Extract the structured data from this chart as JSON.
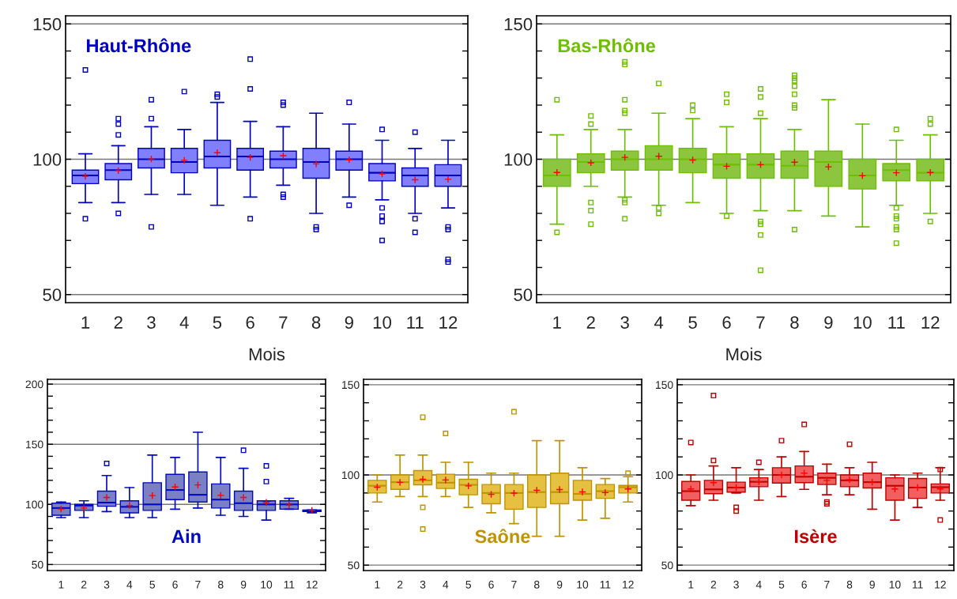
{
  "chart_data": [
    {
      "type": "box",
      "title": "Haut-Rhône",
      "xlabel": "Mois",
      "categories": [
        "1",
        "2",
        "3",
        "4",
        "5",
        "6",
        "7",
        "8",
        "9",
        "10",
        "11",
        "12"
      ],
      "ylim": [
        47,
        153
      ],
      "yticks": [
        50,
        {
          "value": 60,
          "label": null
        },
        {
          "value": 70,
          "label": null
        },
        {
          "value": 80,
          "label": null
        },
        {
          "value": 90,
          "label": null
        },
        100,
        {
          "value": 110,
          "label": null
        },
        {
          "value": 120,
          "label": null
        },
        {
          "value": 130,
          "label": null
        },
        {
          "value": 140,
          "label": null
        },
        150
      ],
      "grid": "y",
      "marker": "square",
      "series": [
        {
          "color": "#8080ff",
          "boxes": [
            {
              "low": 84,
              "q1": 91,
              "median": 94,
              "q3": 96,
              "high": 102,
              "mean": 93.7,
              "outliers": [
                78,
                133
              ]
            },
            {
              "low": 84,
              "q1": 92.4,
              "median": 96,
              "q3": 98.4,
              "high": 105,
              "mean": 95.8,
              "outliers": [
                115,
                113,
                109,
                80
              ]
            },
            {
              "low": 87,
              "q1": 96.8,
              "median": 100,
              "q3": 104,
              "high": 112,
              "mean": 100.1,
              "outliers": [
                122,
                115,
                75
              ]
            },
            {
              "low": 87,
              "q1": 95,
              "median": 99,
              "q3": 104,
              "high": 111,
              "mean": 99.6,
              "outliers": [
                125
              ]
            },
            {
              "low": 83,
              "q1": 96.8,
              "median": 101,
              "q3": 107,
              "high": 121,
              "mean": 102.4,
              "outliers": [
                124,
                123
              ]
            },
            {
              "low": 86,
              "q1": 96,
              "median": 101,
              "q3": 104,
              "high": 114,
              "mean": 100.7,
              "outliers": [
                137,
                126,
                78
              ]
            },
            {
              "low": 90.4,
              "q1": 96.8,
              "median": 100,
              "q3": 103,
              "high": 112,
              "mean": 101.3,
              "outliers": [
                121,
                120,
                87,
                86
              ]
            },
            {
              "low": 80,
              "q1": 93,
              "median": 99,
              "q3": 104,
              "high": 117,
              "mean": 98.3,
              "outliers": [
                75,
                74
              ]
            },
            {
              "low": 86,
              "q1": 96,
              "median": 100,
              "q3": 103,
              "high": 113,
              "mean": 99.8,
              "outliers": [
                121,
                83
              ]
            },
            {
              "low": 85,
              "q1": 92,
              "median": 95,
              "q3": 98.4,
              "high": 107,
              "mean": 94.6,
              "outliers": [
                111,
                82,
                79,
                77,
                70
              ]
            },
            {
              "low": 80,
              "q1": 90,
              "median": 94,
              "q3": 96.8,
              "high": 104,
              "mean": 92.4,
              "outliers": [
                110,
                78,
                73
              ]
            },
            {
              "low": 82,
              "q1": 90,
              "median": 94,
              "q3": 98,
              "high": 107,
              "mean": 92.6,
              "outliers": [
                75,
                74,
                63,
                62
              ]
            }
          ]
        }
      ]
    },
    {
      "type": "box",
      "title": "Bas-Rhône",
      "xlabel": "Mois",
      "categories": [
        "1",
        "2",
        "3",
        "4",
        "5",
        "6",
        "7",
        "8",
        "9",
        "10",
        "11",
        "12"
      ],
      "ylim": [
        47,
        153
      ],
      "yticks": [
        50,
        {
          "value": 60,
          "label": null
        },
        {
          "value": 70,
          "label": null
        },
        {
          "value": 80,
          "label": null
        },
        {
          "value": 90,
          "label": null
        },
        100,
        {
          "value": 110,
          "label": null
        },
        {
          "value": 120,
          "label": null
        },
        {
          "value": 130,
          "label": null
        },
        {
          "value": 140,
          "label": null
        },
        150
      ],
      "grid": "y",
      "marker": "square",
      "series": [
        {
          "color": "#8cc63f",
          "boxes": [
            {
              "low": 76,
              "q1": 90,
              "median": 94,
              "q3": 100,
              "high": 109,
              "mean": 95.1,
              "outliers": [
                122,
                73
              ]
            },
            {
              "low": 90,
              "q1": 95,
              "median": 99,
              "q3": 102,
              "high": 111,
              "mean": 98.7,
              "outliers": [
                116,
                113,
                84,
                81,
                76
              ]
            },
            {
              "low": 86,
              "q1": 96,
              "median": 100,
              "q3": 103,
              "high": 111,
              "mean": 100.7,
              "outliers": [
                136,
                135,
                122,
                118,
                117,
                85,
                84,
                78
              ]
            },
            {
              "low": 83,
              "q1": 96,
              "median": 100,
              "q3": 105,
              "high": 117,
              "mean": 101.1,
              "outliers": [
                128,
                82,
                80
              ]
            },
            {
              "low": 84,
              "q1": 95,
              "median": 100,
              "q3": 104,
              "high": 115,
              "mean": 99.7,
              "outliers": [
                120,
                118
              ]
            },
            {
              "low": 80,
              "q1": 93,
              "median": 98,
              "q3": 102,
              "high": 112,
              "mean": 97.4,
              "outliers": [
                124,
                121,
                79
              ]
            },
            {
              "low": 81,
              "q1": 93,
              "median": 98,
              "q3": 102,
              "high": 115,
              "mean": 98,
              "outliers": [
                126,
                123,
                117,
                77,
                76,
                72,
                59
              ]
            },
            {
              "low": 81,
              "q1": 93,
              "median": 97.6,
              "q3": 103,
              "high": 111,
              "mean": 98.9,
              "outliers": [
                131,
                130,
                129,
                127,
                124,
                120,
                119,
                74
              ]
            },
            {
              "low": 79,
              "q1": 90,
              "median": 99,
              "q3": 103,
              "high": 122,
              "mean": 97.2
            },
            {
              "low": 75,
              "q1": 89,
              "median": 94,
              "q3": 100,
              "high": 113,
              "mean": 93.9
            },
            {
              "low": 83,
              "q1": 92,
              "median": 96,
              "q3": 98.4,
              "high": 107,
              "mean": 95,
              "outliers": [
                111,
                82,
                79,
                78,
                75,
                74,
                69
              ]
            },
            {
              "low": 80,
              "q1": 92,
              "median": 95,
              "q3": 100,
              "high": 109,
              "mean": 95.1,
              "outliers": [
                115,
                113,
                77
              ]
            }
          ]
        }
      ]
    },
    {
      "type": "box",
      "title": "Ain",
      "categories": [
        "1",
        "2",
        "3",
        "4",
        "5",
        "6",
        "7",
        "8",
        "9",
        "10",
        "11",
        "12"
      ],
      "ylim": [
        45,
        204
      ],
      "yticks": [
        50,
        {
          "value": 60,
          "label": null
        },
        {
          "value": 70,
          "label": null
        },
        {
          "value": 80,
          "label": null
        },
        {
          "value": 90,
          "label": null
        },
        100,
        {
          "value": 110,
          "label": null
        },
        {
          "value": 120,
          "label": null
        },
        {
          "value": 130,
          "label": null
        },
        {
          "value": 140,
          "label": null
        },
        150,
        {
          "value": 160,
          "label": null
        },
        {
          "value": 170,
          "label": null
        },
        {
          "value": 180,
          "label": null
        },
        {
          "value": 190,
          "label": null
        },
        200
      ],
      "grid": "y",
      "marker": "square",
      "series": [
        {
          "color": "#7b7fc4",
          "boxes": [
            {
              "low": 89,
              "q1": 91,
              "median": 97,
              "q3": 101,
              "high": 102,
              "mean": 96.2
            },
            {
              "low": 89,
              "q1": 95,
              "median": 99,
              "q3": 100,
              "high": 103,
              "mean": 97
            },
            {
              "low": 94,
              "q1": 98.5,
              "median": 101.5,
              "q3": 111,
              "high": 124,
              "mean": 105.8,
              "outliers": [
                134
              ]
            },
            {
              "low": 89,
              "q1": 93,
              "median": 98,
              "q3": 103,
              "high": 114,
              "mean": 99.1
            },
            {
              "low": 89,
              "q1": 95,
              "median": 100,
              "q3": 118,
              "high": 141,
              "mean": 107.3
            },
            {
              "low": 96,
              "q1": 104,
              "median": 112,
              "q3": 125,
              "high": 139,
              "mean": 114.5
            },
            {
              "low": 97,
              "q1": 102,
              "median": 108,
              "q3": 127,
              "high": 160,
              "mean": 116.2
            },
            {
              "low": 91,
              "q1": 97,
              "median": 104,
              "q3": 117,
              "high": 139,
              "mean": 107.5
            },
            {
              "low": 90,
              "q1": 95,
              "median": 101,
              "q3": 111,
              "high": 130,
              "mean": 105.8,
              "outliers": [
                145
              ]
            },
            {
              "low": 87,
              "q1": 95,
              "median": 100,
              "q3": 103,
              "high": 103,
              "mean": 101.7,
              "outliers": [
                132,
                119
              ]
            },
            {
              "low": 96,
              "q1": 96,
              "median": 100,
              "q3": 103,
              "high": 105,
              "mean": 99.4
            },
            {
              "low": 93,
              "q1": 94,
              "median": 95,
              "q3": 95.3,
              "high": 95.3,
              "mean": 95
            }
          ]
        }
      ]
    },
    {
      "type": "box",
      "title": "Saône",
      "categories": [
        "1",
        "2",
        "3",
        "4",
        "5",
        "6",
        "7",
        "8",
        "9",
        "10",
        "11",
        "12"
      ],
      "ylim": [
        47,
        153
      ],
      "yticks": [
        50,
        {
          "value": 60,
          "label": null
        },
        {
          "value": 70,
          "label": null
        },
        {
          "value": 80,
          "label": null
        },
        {
          "value": 90,
          "label": null
        },
        100,
        {
          "value": 110,
          "label": null
        },
        {
          "value": 120,
          "label": null
        },
        {
          "value": 130,
          "label": null
        },
        {
          "value": 140,
          "label": null
        },
        150
      ],
      "grid": "y",
      "marker": "square",
      "series": [
        {
          "color": "#e6c040",
          "boxes": [
            {
              "low": 85,
              "q1": 90,
              "median": 94,
              "q3": 97,
              "high": 100,
              "mean": 93.2
            },
            {
              "low": 88,
              "q1": 92,
              "median": 96,
              "q3": 100,
              "high": 111,
              "mean": 95.9
            },
            {
              "low": 88,
              "q1": 94.5,
              "median": 97,
              "q3": 102.4,
              "high": 111,
              "mean": 97.6,
              "outliers": [
                132,
                82,
                70
              ]
            },
            {
              "low": 88,
              "q1": 92.5,
              "median": 95.7,
              "q3": 100.4,
              "high": 107,
              "mean": 97.2,
              "outliers": [
                123
              ]
            },
            {
              "low": 82,
              "q1": 89,
              "median": 94.5,
              "q3": 97.6,
              "high": 107,
              "mean": 93.9
            },
            {
              "low": 79,
              "q1": 84,
              "median": 90,
              "q3": 94.7,
              "high": 101,
              "mean": 89.2
            },
            {
              "low": 73,
              "q1": 81,
              "median": 90,
              "q3": 94.7,
              "high": 101,
              "mean": 89.9,
              "outliers": [
                135
              ]
            },
            {
              "low": 66,
              "q1": 82,
              "median": 90.5,
              "q3": 100,
              "high": 119,
              "mean": 91.5
            },
            {
              "low": 66,
              "q1": 84,
              "median": 90.5,
              "q3": 101,
              "high": 119,
              "mean": 91.9
            },
            {
              "low": 75,
              "q1": 86,
              "median": 89.5,
              "q3": 97,
              "high": 104,
              "mean": 90.6
            },
            {
              "low": 76,
              "q1": 87,
              "median": 91,
              "q3": 94.7,
              "high": 98,
              "mean": 90.2
            },
            {
              "low": 85,
              "q1": 90,
              "median": 93.2,
              "q3": 94.2,
              "high": 99,
              "mean": 92.2,
              "outliers": [
                101
              ]
            }
          ]
        }
      ]
    },
    {
      "type": "box",
      "title": "Isère",
      "categories": [
        "1",
        "2",
        "3",
        "4",
        "5",
        "6",
        "7",
        "8",
        "9",
        "10",
        "11",
        "12"
      ],
      "ylim": [
        47,
        153
      ],
      "yticks": [
        50,
        {
          "value": 60,
          "label": null
        },
        {
          "value": 70,
          "label": null
        },
        {
          "value": 80,
          "label": null
        },
        {
          "value": 90,
          "label": null
        },
        100,
        {
          "value": 110,
          "label": null
        },
        {
          "value": 120,
          "label": null
        },
        {
          "value": 130,
          "label": null
        },
        {
          "value": 140,
          "label": null
        },
        150
      ],
      "grid": "y",
      "marker": "square",
      "series": [
        {
          "color": "#f06060",
          "boxes": [
            {
              "low": 83,
              "q1": 86,
              "median": 91,
              "q3": 96.4,
              "high": 100,
              "mean": 92.2,
              "outliers": [
                118
              ]
            },
            {
              "low": 86,
              "q1": 89.6,
              "median": 92,
              "q3": 97,
              "high": 105,
              "mean": 95.7,
              "outliers": [
                144,
                108
              ]
            },
            {
              "low": 90,
              "q1": 90.5,
              "median": 93,
              "q3": 96,
              "high": 104,
              "mean": 93,
              "outliers": [
                82,
                80
              ]
            },
            {
              "low": 86,
              "q1": 93.5,
              "median": 96.2,
              "q3": 98.4,
              "high": 103,
              "mean": 96.2,
              "outliers": [
                107
              ]
            },
            {
              "low": 88,
              "q1": 95.5,
              "median": 100,
              "q3": 104,
              "high": 110,
              "mean": 100,
              "outliers": [
                119
              ]
            },
            {
              "low": 92,
              "q1": 95.7,
              "median": 99,
              "q3": 105,
              "high": 113,
              "mean": 101,
              "outliers": [
                128
              ]
            },
            {
              "low": 89,
              "q1": 94.7,
              "median": 98.4,
              "q3": 101,
              "high": 106,
              "mean": 97,
              "outliers": [
                85,
                84
              ]
            },
            {
              "low": 89,
              "q1": 93.5,
              "median": 97,
              "q3": 100,
              "high": 104,
              "mean": 97.4,
              "outliers": [
                117
              ]
            },
            {
              "low": 81,
              "q1": 92.8,
              "median": 96,
              "q3": 101,
              "high": 107,
              "mean": 96
            },
            {
              "low": 75,
              "q1": 86,
              "median": 94,
              "q3": 98.4,
              "high": 100,
              "mean": 92.2
            },
            {
              "low": 82,
              "q1": 87,
              "median": 93,
              "q3": 98,
              "high": 101,
              "mean": 93
            },
            {
              "low": 86,
              "q1": 90,
              "median": 93.2,
              "q3": 95,
              "high": 104,
              "mean": 92.2,
              "outliers": [
                103,
                75
              ]
            }
          ]
        }
      ]
    }
  ]
}
